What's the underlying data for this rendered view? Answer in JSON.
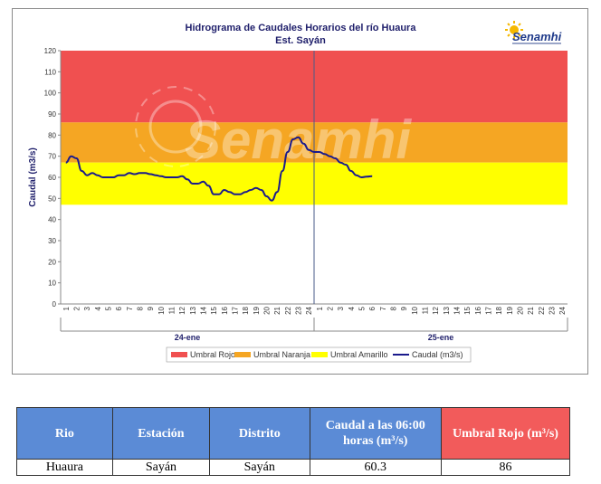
{
  "chart_data": {
    "type": "line",
    "title": "Hidrograma  de Caudales Horarios  del río Huaura",
    "subtitle": "Est. Sayán",
    "ylabel": "Caudal (m3/s)",
    "ylim": [
      0,
      120
    ],
    "yticks": [
      0,
      10,
      20,
      30,
      40,
      50,
      60,
      70,
      80,
      90,
      100,
      110,
      120
    ],
    "xticks": [
      "1",
      "2",
      "3",
      "4",
      "5",
      "6",
      "7",
      "8",
      "9",
      "10",
      "11",
      "12",
      "13",
      "14",
      "15",
      "16",
      "17",
      "18",
      "19",
      "20",
      "21",
      "22",
      "23",
      "24",
      "1",
      "2",
      "3",
      "4",
      "5",
      "6",
      "7",
      "8",
      "9",
      "10",
      "11",
      "12",
      "13",
      "14",
      "15",
      "16",
      "17",
      "18",
      "19",
      "20",
      "21",
      "22",
      "23",
      "24"
    ],
    "day_labels": [
      "24-ene",
      "25-ene"
    ],
    "thresholds": [
      {
        "name": "Umbral Rojo",
        "from": 86,
        "to": 120,
        "color": "#f05050"
      },
      {
        "name": "Umbral Naranja",
        "from": 67,
        "to": 86,
        "color": "#f5a623"
      },
      {
        "name": "Umbral Amarillo",
        "from": 47,
        "to": 67,
        "color": "#ffff00"
      }
    ],
    "series": [
      {
        "name": "Caudal (m3/s)",
        "color": "#1a1a8c",
        "x": [
          1,
          1.5,
          2,
          2.5,
          3,
          3.5,
          4,
          4.5,
          5,
          5.5,
          6,
          6.5,
          7,
          7.5,
          8,
          8.5,
          9,
          9.5,
          10,
          10.5,
          11,
          11.5,
          12,
          12.5,
          13,
          13.5,
          14,
          14.5,
          15,
          15.5,
          16,
          16.5,
          17,
          17.5,
          18,
          18.5,
          19,
          19.5,
          20,
          20.5,
          21,
          21.5,
          22,
          22.5,
          23,
          23.5,
          24,
          24.5,
          25,
          25.5,
          26,
          26.5,
          27,
          27.5,
          28,
          28.5,
          29,
          29.5,
          30
        ],
        "y": [
          67,
          70,
          69,
          63,
          61,
          62,
          61,
          60,
          60,
          60,
          61,
          61,
          62,
          61.5,
          62,
          62,
          61.5,
          61,
          60.5,
          60,
          60,
          60,
          60.5,
          59,
          57,
          57,
          58,
          56,
          52,
          52,
          54,
          53,
          52,
          52,
          53,
          54,
          55,
          54,
          51,
          49,
          53,
          63,
          72,
          78,
          79,
          76,
          73,
          72,
          72,
          71,
          70,
          69,
          67,
          66,
          63,
          61,
          60,
          60.3,
          60.5
        ]
      }
    ],
    "legend": [
      "Umbral Rojo",
      "Umbral Naranja",
      "Umbral Amarillo",
      "Caudal (m3/s)"
    ],
    "legend_position": "bottom",
    "grid": false
  },
  "logo": {
    "text": "Senamhi"
  },
  "watermark": "Senamhi",
  "table": {
    "headers": [
      "Rio",
      "Estación",
      "Distrito",
      "Caudal a las 06:00 horas (m³/s)",
      "Umbral Rojo (m³/s)"
    ],
    "row": [
      "Huaura",
      "Sayán",
      "Sayán",
      "60.3",
      "86"
    ]
  }
}
